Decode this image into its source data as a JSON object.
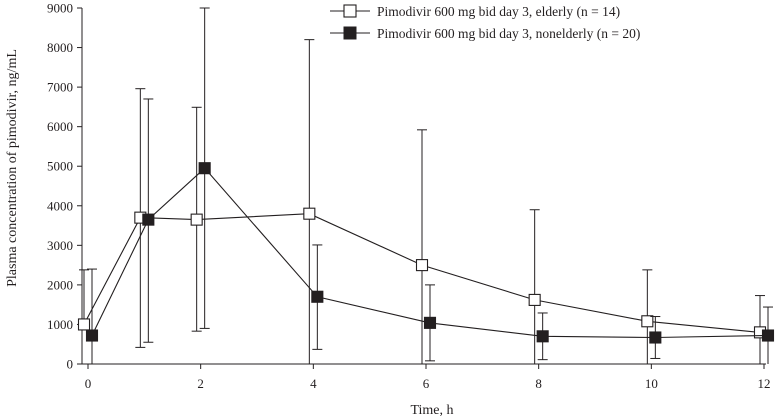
{
  "chart_data": {
    "type": "line",
    "title": "",
    "xlabel": "Time, h",
    "ylabel": "Plasma concentration of pimodivir, ng/mL",
    "xlim": [
      0,
      12
    ],
    "ylim": [
      0,
      9000
    ],
    "x_ticks": [
      "0",
      "2",
      "4",
      "6",
      "8",
      "10",
      "12"
    ],
    "y_ticks": [
      "0",
      "1000",
      "2000",
      "3000",
      "4000",
      "5000",
      "6000",
      "7000",
      "8000",
      "9000"
    ],
    "grid": false,
    "legend_position": "top-right",
    "series": [
      {
        "name": "Pimodivir 600 mg bid day 3, elderly (n = 14)",
        "marker": "open-square",
        "x": [
          0,
          1,
          2,
          4,
          6,
          8,
          10,
          12
        ],
        "y": [
          1000,
          3700,
          3650,
          3800,
          2500,
          1620,
          1080,
          800
        ],
        "err_low": [
          0,
          3280,
          2820,
          3800,
          2500,
          1620,
          1080,
          800
        ],
        "err_high": [
          1380,
          3260,
          2840,
          4400,
          3420,
          2280,
          1300,
          930
        ]
      },
      {
        "name": "Pimodivir 600 mg bid day 3, nonelderly (n = 20)",
        "marker": "filled-square",
        "x": [
          0,
          1,
          2,
          4,
          6,
          8,
          10,
          12
        ],
        "y": [
          720,
          3650,
          4950,
          1700,
          1040,
          700,
          670,
          720
        ],
        "err_low": [
          720,
          3100,
          4050,
          1330,
          960,
          590,
          530,
          720
        ],
        "err_high": [
          1680,
          3050,
          4050,
          1310,
          960,
          590,
          530,
          720
        ]
      }
    ]
  }
}
